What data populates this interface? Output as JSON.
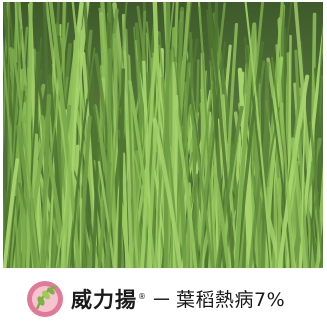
{
  "caption": {
    "brand": "威力揚",
    "registered_mark": "®",
    "separator": "－",
    "result": "葉稻熱病7%"
  },
  "colors": {
    "grass_dark": "#3e5a2a",
    "grass_light": "#8fb65a",
    "logo_pink": "#e07a98",
    "logo_green": "#7bb342"
  },
  "icons": {
    "logo": "rice-grain-logo-icon"
  }
}
